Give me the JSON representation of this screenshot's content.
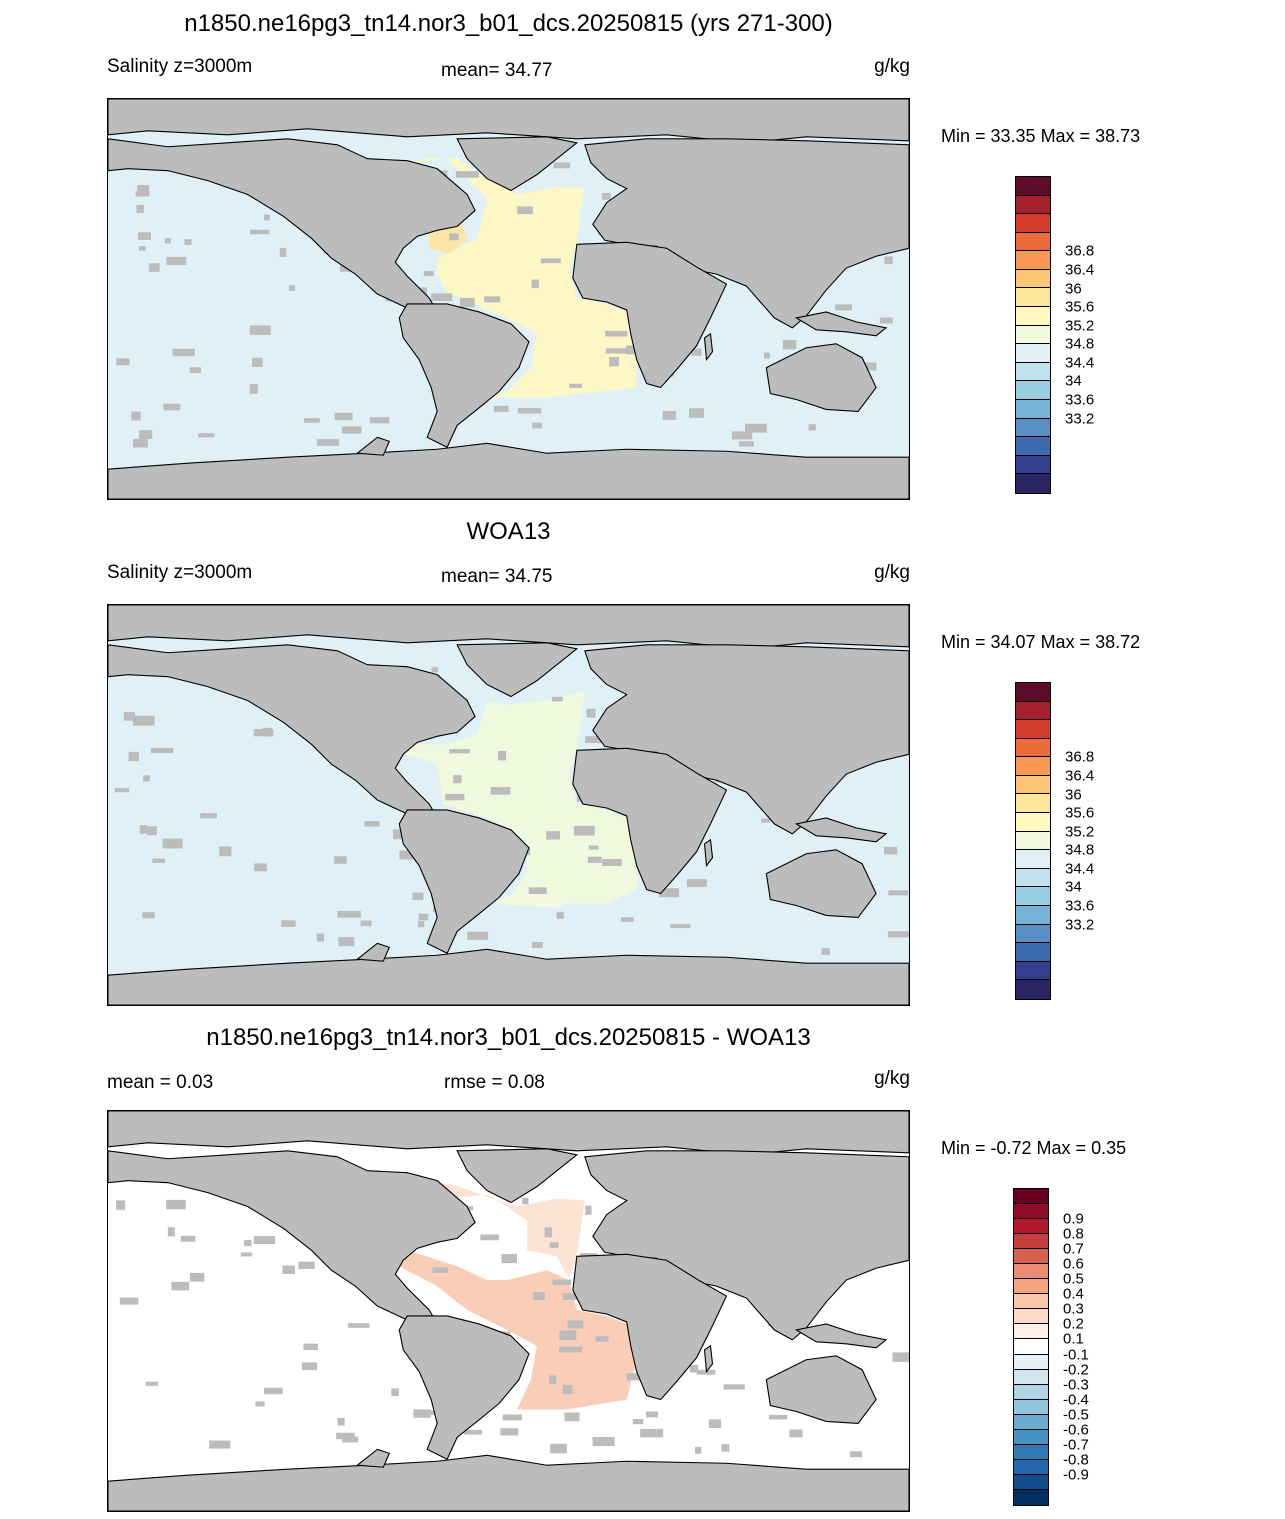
{
  "panels": [
    {
      "title": "n1850.ne16pg3_tn14.nor3_b01_dcs.20250815 (yrs 271-300)",
      "left_label": "Salinity z=3000m",
      "mid_label": "mean=  34.77",
      "units": "g/kg",
      "minmax": "Min =  33.35 Max =  38.73",
      "ocean_color": "#dff1f7",
      "anomaly_colors": [
        "#fdf6c5",
        "#fbe5a9"
      ],
      "colorbar": {
        "colors": [
          "#5e0b2c",
          "#a4202d",
          "#d43d2c",
          "#ee6b3c",
          "#f99852",
          "#fdc677",
          "#fde79a",
          "#fff9c0",
          "#f0f8dd",
          "#dff1f7",
          "#c0e3ef",
          "#98cde2",
          "#75b3d7",
          "#5890c5",
          "#3d6aaf",
          "#323f8c",
          "#2a2462"
        ],
        "labels": [
          "36.8",
          "36.4",
          "36",
          "35.6",
          "35.2",
          "34.8",
          "34.4",
          "34",
          "33.6",
          "33.2"
        ]
      }
    },
    {
      "title": "WOA13",
      "left_label": "Salinity z=3000m",
      "mid_label": "mean=  34.75",
      "units": "g/kg",
      "minmax": "Min =  34.07 Max =  38.72",
      "ocean_color": "#dff1f7",
      "anomaly_colors": [
        "#f0f8dd",
        "#f3f9df"
      ],
      "colorbar": {
        "colors": [
          "#5e0b2c",
          "#a4202d",
          "#d43d2c",
          "#ee6b3c",
          "#f99852",
          "#fdc677",
          "#fde79a",
          "#fff9c0",
          "#f0f8dd",
          "#dff1f7",
          "#c0e3ef",
          "#98cde2",
          "#75b3d7",
          "#5890c5",
          "#3d6aaf",
          "#323f8c",
          "#2a2462"
        ],
        "labels": [
          "36.8",
          "36.4",
          "36",
          "35.6",
          "35.2",
          "34.8",
          "34.4",
          "34",
          "33.6",
          "33.2"
        ]
      }
    },
    {
      "title": "n1850.ne16pg3_tn14.nor3_b01_dcs.20250815 - WOA13",
      "left_label": "mean =   0.03",
      "mid_label": "rmse =   0.08",
      "units": "g/kg",
      "minmax": "Min =  -0.72 Max =    0.35",
      "ocean_color": "#ffffff",
      "anomaly_colors": [
        "#fde3d4",
        "#f9cdb6"
      ],
      "colorbar": {
        "colors": [
          "#67001f",
          "#8f0c26",
          "#b2182b",
          "#c63e3e",
          "#d6604d",
          "#e98c73",
          "#f4a582",
          "#f9c7aa",
          "#fddbc7",
          "#fdf0e8",
          "#ffffff",
          "#e6f1f7",
          "#d1e5f0",
          "#b0d3e6",
          "#92c5de",
          "#6aabd0",
          "#4393c3",
          "#2f79b5",
          "#2166ac",
          "#134c8c",
          "#053061"
        ],
        "labels": [
          "0.9",
          "0.8",
          "0.7",
          "0.6",
          "0.5",
          "0.4",
          "0.3",
          "0.2",
          "0.1",
          "-0.1",
          "-0.2",
          "-0.3",
          "-0.4",
          "-0.5",
          "-0.6",
          "-0.7",
          "-0.8",
          "-0.9"
        ]
      }
    }
  ]
}
